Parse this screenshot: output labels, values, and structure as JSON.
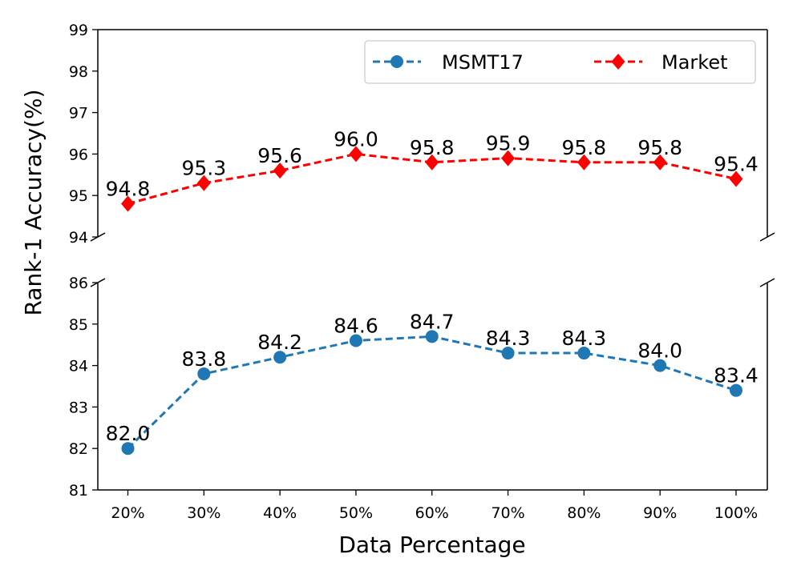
{
  "chart_data": {
    "type": "line",
    "broken_y_axis": true,
    "xlabel": "Data Percentage",
    "ylabel": "Rank-1 Accuracy(%)",
    "categories": [
      "20%",
      "30%",
      "40%",
      "50%",
      "60%",
      "70%",
      "80%",
      "90%",
      "100%"
    ],
    "panels": [
      {
        "name": "top",
        "ylim": [
          94,
          99
        ],
        "yticks": [
          "94",
          "95",
          "96",
          "97",
          "98",
          "99"
        ],
        "series_index": 1
      },
      {
        "name": "bottom",
        "ylim": [
          81,
          86
        ],
        "yticks": [
          "81",
          "82",
          "83",
          "84",
          "85",
          "86"
        ],
        "series_index": 0
      }
    ],
    "series": [
      {
        "name": "MSMT17",
        "color": "#1f77b4",
        "marker": "circle",
        "linestyle": "dashed",
        "values": [
          82.0,
          83.8,
          84.2,
          84.6,
          84.7,
          84.3,
          84.3,
          84.0,
          83.4
        ],
        "labels": [
          "82.0",
          "83.8",
          "84.2",
          "84.6",
          "84.7",
          "84.3",
          "84.3",
          "84.0",
          "83.4"
        ]
      },
      {
        "name": "Market",
        "color": "#ff0000",
        "marker": "diamond",
        "linestyle": "dashed",
        "values": [
          94.8,
          95.3,
          95.6,
          96.0,
          95.8,
          95.9,
          95.8,
          95.8,
          95.4
        ],
        "labels": [
          "94.8",
          "95.3",
          "95.6",
          "96.0",
          "95.8",
          "95.9",
          "95.8",
          "95.8",
          "95.4"
        ]
      }
    ],
    "legend": {
      "position": "top-right",
      "entries": [
        "MSMT17",
        "Market"
      ]
    },
    "grid": false
  }
}
